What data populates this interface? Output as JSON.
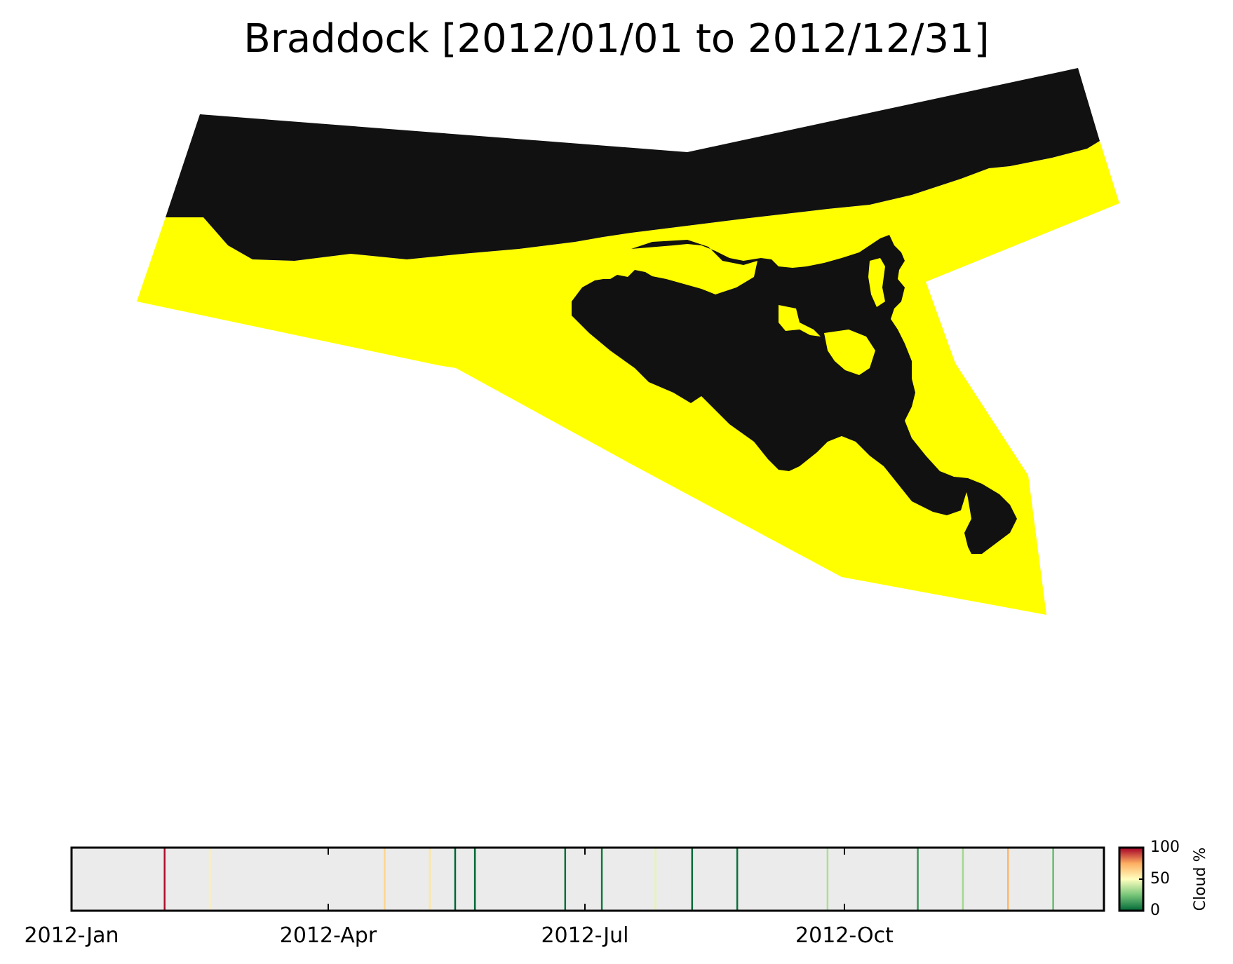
{
  "title": "Braddock [2012/01/01 to 2012/12/31]",
  "colors": {
    "water": "#ffff00",
    "land": "#111111",
    "timeline_bg": "#ebebeb"
  },
  "chart_data": {
    "type": "timeline",
    "x_range": [
      "2012-01-01",
      "2012-12-31"
    ],
    "x_tick_labels": [
      {
        "date": "2012-01-01",
        "label": "2012-Jan"
      },
      {
        "date": "2012-04-01",
        "label": "2012-Apr"
      },
      {
        "date": "2012-07-01",
        "label": "2012-Jul"
      },
      {
        "date": "2012-10-01",
        "label": "2012-Oct"
      }
    ],
    "observations": [
      {
        "date": "2012-02-03",
        "cloud_pct": 98
      },
      {
        "date": "2012-02-19",
        "cloud_pct": 55
      },
      {
        "date": "2012-04-21",
        "cloud_pct": 63
      },
      {
        "date": "2012-05-07",
        "cloud_pct": 58
      },
      {
        "date": "2012-05-16",
        "cloud_pct": 0
      },
      {
        "date": "2012-05-23",
        "cloud_pct": 0
      },
      {
        "date": "2012-06-24",
        "cloud_pct": 2
      },
      {
        "date": "2012-07-07",
        "cloud_pct": 4
      },
      {
        "date": "2012-07-26",
        "cloud_pct": 45
      },
      {
        "date": "2012-08-08",
        "cloud_pct": 1
      },
      {
        "date": "2012-08-24",
        "cloud_pct": 2
      },
      {
        "date": "2012-09-25",
        "cloud_pct": 35
      },
      {
        "date": "2012-10-27",
        "cloud_pct": 12
      },
      {
        "date": "2012-11-12",
        "cloud_pct": 33
      },
      {
        "date": "2012-11-28",
        "cloud_pct": 72
      },
      {
        "date": "2012-12-14",
        "cloud_pct": 22
      }
    ],
    "colorbar": {
      "label": "Cloud %",
      "ticks": [
        "0",
        "50",
        "100"
      ],
      "range": [
        0,
        100
      ]
    }
  }
}
